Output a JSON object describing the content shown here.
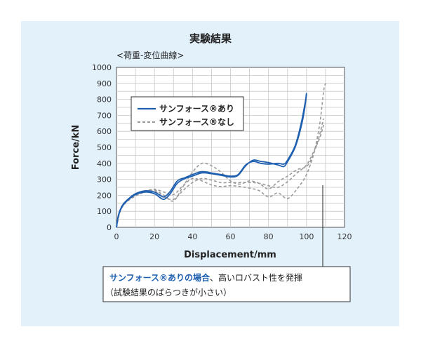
{
  "chart_data": {
    "type": "line",
    "title": "実験結果",
    "subtitle": "<荷重-変位曲線>",
    "xlabel": "Displacement/mm",
    "ylabel": "Force/kN",
    "xlim": [
      0,
      120
    ],
    "ylim": [
      0,
      1000
    ],
    "xticks": [
      "0",
      "20",
      "40",
      "60",
      "80",
      "100",
      "120"
    ],
    "yticks": [
      "0",
      "100",
      "200",
      "300",
      "400",
      "500",
      "600",
      "700",
      "800",
      "900",
      "1000"
    ],
    "grid": true,
    "legend_position": "top-left",
    "legend": [
      "サンフォース®あり",
      "サンフォース®なし"
    ],
    "colors": {
      "with": "#1f5fb0",
      "without": "#9a9a9a"
    },
    "series": [
      {
        "name": "サンフォース®あり",
        "style": "solid",
        "values": [
          [
            [
              0,
              0
            ],
            [
              1,
              70
            ],
            [
              3,
              130
            ],
            [
              6,
              170
            ],
            [
              10,
              205
            ],
            [
              15,
              220
            ],
            [
              20,
              210
            ],
            [
              23,
              185
            ],
            [
              25,
              175
            ],
            [
              28,
              205
            ],
            [
              32,
              275
            ],
            [
              36,
              305
            ],
            [
              40,
              320
            ],
            [
              45,
              340
            ],
            [
              50,
              335
            ],
            [
              55,
              325
            ],
            [
              60,
              315
            ],
            [
              64,
              325
            ],
            [
              68,
              385
            ],
            [
              72,
              420
            ],
            [
              76,
              412
            ],
            [
              80,
              405
            ],
            [
              85,
              390
            ],
            [
              88,
              380
            ],
            [
              90,
              410
            ],
            [
              94,
              500
            ],
            [
              97,
              620
            ],
            [
              99,
              740
            ],
            [
              100,
              840
            ]
          ],
          [
            [
              0,
              0
            ],
            [
              1,
              75
            ],
            [
              3,
              135
            ],
            [
              6,
              175
            ],
            [
              10,
              210
            ],
            [
              15,
              228
            ],
            [
              20,
              220
            ],
            [
              23,
              200
            ],
            [
              25,
              190
            ],
            [
              28,
              220
            ],
            [
              32,
              290
            ],
            [
              36,
              310
            ],
            [
              40,
              330
            ],
            [
              45,
              348
            ],
            [
              50,
              340
            ],
            [
              55,
              330
            ],
            [
              60,
              320
            ],
            [
              64,
              330
            ],
            [
              68,
              390
            ],
            [
              72,
              412
            ],
            [
              76,
              400
            ],
            [
              80,
              395
            ],
            [
              85,
              400
            ],
            [
              88,
              395
            ],
            [
              90,
              420
            ],
            [
              94,
              510
            ],
            [
              97,
              640
            ],
            [
              99,
              760
            ],
            [
              100,
              830
            ]
          ]
        ]
      },
      {
        "name": "サンフォース®なし",
        "style": "dashed",
        "values": [
          [
            [
              0,
              0
            ],
            [
              2,
              110
            ],
            [
              5,
              165
            ],
            [
              10,
              205
            ],
            [
              15,
              225
            ],
            [
              20,
              238
            ],
            [
              25,
              220
            ],
            [
              30,
              205
            ],
            [
              35,
              260
            ],
            [
              40,
              305
            ],
            [
              45,
              290
            ],
            [
              50,
              265
            ],
            [
              55,
              255
            ],
            [
              60,
              260
            ],
            [
              65,
              255
            ],
            [
              70,
              245
            ],
            [
              75,
              230
            ],
            [
              80,
              190
            ],
            [
              85,
              215
            ],
            [
              90,
              180
            ],
            [
              95,
              240
            ],
            [
              100,
              330
            ],
            [
              104,
              470
            ],
            [
              107,
              650
            ],
            [
              109,
              850
            ],
            [
              110,
              900
            ]
          ],
          [
            [
              0,
              0
            ],
            [
              2,
              105
            ],
            [
              5,
              160
            ],
            [
              10,
              200
            ],
            [
              15,
              222
            ],
            [
              20,
              232
            ],
            [
              25,
              200
            ],
            [
              30,
              165
            ],
            [
              35,
              255
            ],
            [
              40,
              345
            ],
            [
              45,
              400
            ],
            [
              50,
              385
            ],
            [
              55,
              345
            ],
            [
              60,
              290
            ],
            [
              65,
              270
            ],
            [
              70,
              290
            ],
            [
              75,
              275
            ],
            [
              80,
              240
            ],
            [
              85,
              285
            ],
            [
              90,
              320
            ],
            [
              95,
              360
            ],
            [
              100,
              380
            ],
            [
              103,
              440
            ],
            [
              106,
              540
            ],
            [
              109,
              680
            ]
          ],
          [
            [
              0,
              0
            ],
            [
              2,
              100
            ],
            [
              5,
              155
            ],
            [
              10,
              195
            ],
            [
              15,
              220
            ],
            [
              20,
              225
            ],
            [
              25,
              190
            ],
            [
              30,
              175
            ],
            [
              35,
              230
            ],
            [
              40,
              280
            ],
            [
              45,
              305
            ],
            [
              50,
              295
            ],
            [
              55,
              280
            ],
            [
              60,
              280
            ],
            [
              65,
              280
            ],
            [
              70,
              280
            ],
            [
              75,
              275
            ],
            [
              80,
              260
            ],
            [
              85,
              250
            ],
            [
              90,
              285
            ],
            [
              95,
              340
            ],
            [
              100,
              390
            ],
            [
              104,
              480
            ],
            [
              107,
              560
            ],
            [
              109,
              640
            ]
          ]
        ]
      }
    ]
  },
  "note": {
    "highlight": "サンフォース®ありの場合",
    "rest": "、高いロバスト性を発揮",
    "line2": "（試験結果のばらつきが小さい）"
  }
}
